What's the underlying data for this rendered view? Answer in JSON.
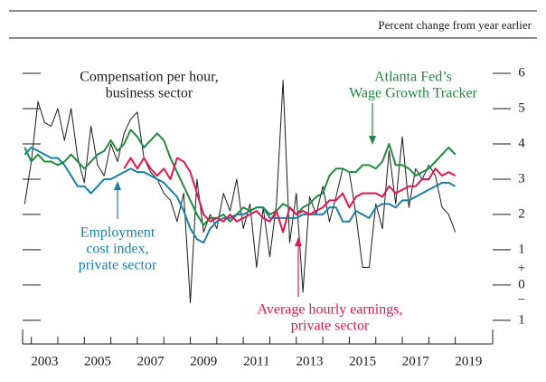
{
  "chart_data": {
    "type": "line",
    "subtitle": "Percent change from year earlier",
    "x": [
      2002.75,
      2003.0,
      2003.25,
      2003.5,
      2003.75,
      2004.0,
      2004.25,
      2004.5,
      2004.75,
      2005.0,
      2005.25,
      2005.5,
      2005.75,
      2006.0,
      2006.25,
      2006.5,
      2006.75,
      2007.0,
      2007.25,
      2007.5,
      2007.75,
      2008.0,
      2008.25,
      2008.5,
      2008.75,
      2009.0,
      2009.25,
      2009.5,
      2009.75,
      2010.0,
      2010.25,
      2010.5,
      2010.75,
      2011.0,
      2011.25,
      2011.5,
      2011.75,
      2012.0,
      2012.25,
      2012.5,
      2012.75,
      2013.0,
      2013.25,
      2013.5,
      2013.75,
      2014.0,
      2014.25,
      2014.5,
      2014.75,
      2015.0,
      2015.25,
      2015.5,
      2015.75,
      2016.0,
      2016.25,
      2016.5,
      2016.75,
      2017.0,
      2017.25,
      2017.5,
      2017.75,
      2018.0,
      2018.25,
      2018.5,
      2018.75,
      2019.0
    ],
    "series": [
      {
        "name": "Compensation per hour, business sector",
        "color": "#1a1a1a",
        "width": 1,
        "values": [
          2.3,
          3.5,
          5.2,
          4.6,
          4.5,
          5.0,
          4.1,
          5.0,
          3.6,
          2.9,
          4.5,
          3.4,
          3.1,
          4.0,
          3.5,
          4.3,
          4.7,
          4.9,
          3.6,
          3.2,
          3.0,
          2.6,
          2.4,
          1.8,
          2.6,
          -0.5,
          3.0,
          1.5,
          2.0,
          1.6,
          2.6,
          2.1,
          3.0,
          1.6,
          2.3,
          0.5,
          2.2,
          0.8,
          2.3,
          5.8,
          1.2,
          2.6,
          -0.2,
          2.5,
          2.0,
          2.8,
          1.8,
          2.5,
          3.3,
          3.2,
          2.0,
          0.5,
          0.5,
          2.3,
          1.6,
          3.8,
          2.3,
          4.2,
          2.2,
          3.3,
          3.0,
          3.4,
          3.1,
          2.2,
          2.0,
          1.5
        ]
      },
      {
        "name": "Employment cost index, private sector",
        "color": "#1a7fa8",
        "width": 2,
        "values": [
          3.7,
          3.9,
          3.8,
          3.7,
          3.6,
          3.6,
          3.4,
          3.1,
          2.8,
          2.8,
          2.6,
          2.8,
          3.0,
          3.0,
          3.1,
          3.2,
          3.3,
          3.2,
          3.2,
          3.1,
          3.0,
          2.9,
          2.7,
          2.5,
          2.1,
          1.6,
          1.3,
          1.2,
          1.6,
          1.8,
          1.9,
          1.9,
          2.0,
          2.0,
          2.1,
          2.2,
          2.2,
          1.9,
          1.9,
          1.9,
          1.9,
          1.9,
          2.0,
          2.0,
          2.0,
          2.0,
          2.2,
          2.2,
          1.8,
          1.8,
          2.1,
          2.0,
          1.9,
          2.2,
          2.3,
          2.3,
          2.2,
          2.4,
          2.4,
          2.5,
          2.6,
          2.7,
          2.8,
          2.9,
          2.9,
          2.8
        ]
      },
      {
        "name": "Atlanta Fed's Wage Growth Tracker",
        "color": "#1f8a3c",
        "width": 2,
        "values": [
          3.9,
          3.5,
          3.7,
          3.5,
          3.5,
          3.4,
          3.5,
          3.7,
          3.5,
          3.3,
          3.5,
          3.7,
          3.8,
          4.1,
          3.8,
          4.0,
          4.4,
          4.2,
          3.9,
          4.1,
          4.3,
          4.1,
          3.6,
          3.2,
          2.8,
          2.4,
          2.0,
          1.7,
          1.9,
          1.9,
          2.0,
          1.8,
          2.0,
          2.2,
          2.1,
          2.2,
          2.2,
          2.0,
          2.1,
          2.3,
          2.2,
          2.0,
          2.2,
          2.3,
          2.5,
          2.6,
          3.1,
          3.3,
          3.3,
          3.2,
          3.2,
          3.4,
          3.4,
          3.3,
          3.5,
          4.0,
          3.4,
          3.4,
          3.3,
          3.1,
          3.2,
          3.3,
          3.5,
          3.7,
          3.9,
          3.7
        ]
      },
      {
        "name": "Average hourly earnings, private sector",
        "color": "#e0174f",
        "width": 2,
        "values": [
          null,
          null,
          null,
          null,
          null,
          null,
          null,
          null,
          null,
          null,
          null,
          null,
          null,
          null,
          null,
          3.3,
          3.6,
          3.3,
          3.6,
          3.3,
          3.1,
          3.3,
          3.0,
          3.6,
          3.5,
          3.2,
          2.6,
          2.0,
          1.8,
          1.9,
          1.8,
          2.0,
          1.8,
          1.9,
          2.0,
          2.1,
          1.9,
          1.8,
          2.1,
          1.5,
          2.2,
          2.0,
          2.1,
          2.0,
          2.1,
          2.2,
          2.4,
          2.4,
          2.6,
          2.2,
          2.5,
          2.6,
          2.6,
          2.6,
          2.5,
          2.8,
          2.6,
          2.7,
          2.8,
          2.8,
          3.0,
          3.0,
          3.3,
          3.1,
          3.2,
          3.1
        ]
      }
    ],
    "annotations": [
      {
        "lines": [
          "Compensation per hour,",
          "business sector"
        ],
        "color": "#1a1a1a"
      },
      {
        "lines": [
          "Atlanta Fed’s",
          "Wage Growth Tracker"
        ],
        "color": "#1f8a3c"
      },
      {
        "lines": [
          "Employment",
          "cost index,",
          "private sector"
        ],
        "color": "#1a7fa8"
      },
      {
        "lines": [
          "Average hourly earnings,",
          "private sector"
        ],
        "color": "#e0174f"
      }
    ],
    "xlim": [
      2002.67,
      2020.41
    ],
    "xtick_marks": [
      2003,
      2004,
      2005,
      2006,
      2007,
      2008,
      2009,
      2010,
      2011,
      2012,
      2013,
      2014,
      2015,
      2016,
      2017,
      2018,
      2019
    ],
    "xticks": [
      {
        "value": 2003.5,
        "label": "2003"
      },
      {
        "value": 2005.5,
        "label": "2005"
      },
      {
        "value": 2007.5,
        "label": "2007"
      },
      {
        "value": 2009.5,
        "label": "2009"
      },
      {
        "value": 2011.5,
        "label": "2011"
      },
      {
        "value": 2013.5,
        "label": "2013"
      },
      {
        "value": 2015.5,
        "label": "2015"
      },
      {
        "value": 2017.5,
        "label": "2017"
      },
      {
        "value": 2019.5,
        "label": "2019"
      }
    ],
    "ylim": [
      -1.67,
      6.5
    ],
    "yticks": [
      {
        "value": -1,
        "label": "1"
      },
      0,
      1,
      2,
      3,
      4,
      5,
      6
    ],
    "zero_signs": [
      "+",
      "−"
    ]
  }
}
